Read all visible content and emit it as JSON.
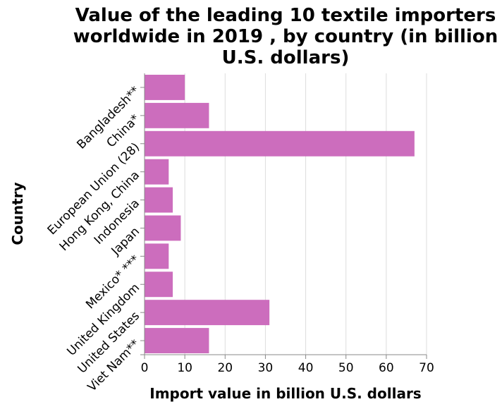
{
  "chart_data": {
    "type": "bar",
    "orientation": "horizontal",
    "title_lines": [
      "Value of the leading 10 textile importers",
      "worldwide in 2019 , by country (in billion",
      "U.S. dollars)"
    ],
    "xlabel": "Import value in billion U.S. dollars",
    "ylabel": "Country",
    "xlim": [
      0,
      70
    ],
    "xticks": [
      0,
      10,
      20,
      30,
      40,
      50,
      60,
      70
    ],
    "grid": true,
    "bar_color": "#cc6dbd",
    "categories": [
      "Bangladesh**",
      "China*",
      "European Union (28)",
      "Hong Kong, China",
      "Indonesia",
      "Japan",
      "Mexico* ***",
      "United Kingdom",
      "United States",
      "Viet Nam**"
    ],
    "values": [
      10,
      16,
      67,
      6,
      7,
      9,
      6,
      7,
      31,
      16
    ]
  }
}
